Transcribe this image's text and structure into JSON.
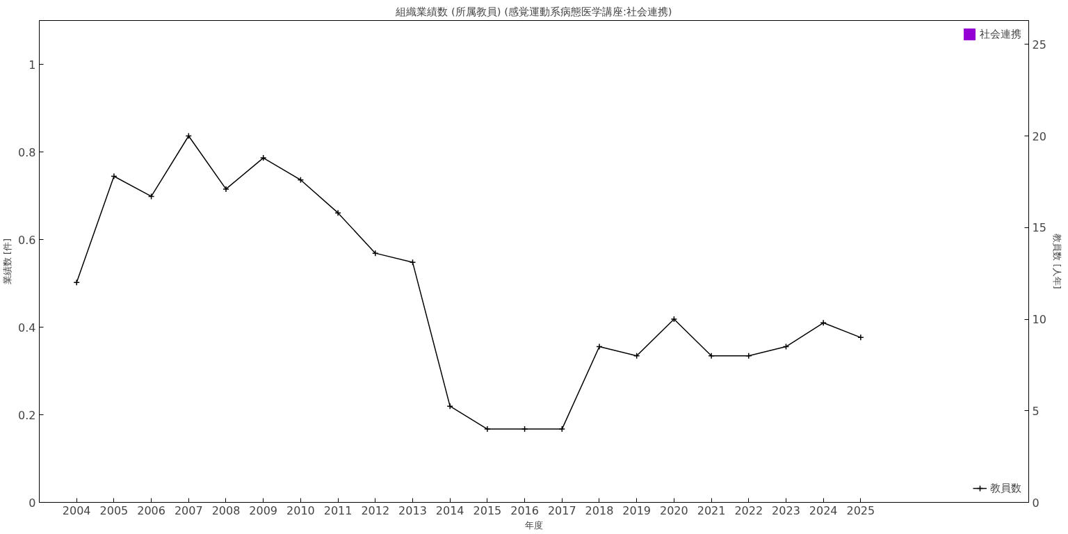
{
  "chart_data": {
    "type": "bar",
    "title": "組織業績数 (所属教員) (感覚運動系病態医学講座:社会連携)",
    "xlabel": "年度",
    "ylabel": "業績数 [件]",
    "y2label": "教員数 [人年]",
    "x": [
      2004,
      2005,
      2006,
      2007,
      2008,
      2009,
      2010,
      2011,
      2012,
      2013,
      2014,
      2015,
      2016,
      2017,
      2018,
      2019,
      2020,
      2021,
      2022,
      2023,
      2024,
      2025
    ],
    "xlim": [
      2003,
      2029.5
    ],
    "xticks": [
      2004,
      2005,
      2006,
      2007,
      2008,
      2009,
      2010,
      2011,
      2012,
      2013,
      2014,
      2015,
      2016,
      2017,
      2018,
      2019,
      2020,
      2021,
      2022,
      2023,
      2024,
      2025
    ],
    "ylim": [
      0,
      1.1
    ],
    "yticks": [
      0,
      0.2,
      0.4,
      0.6,
      0.8,
      1
    ],
    "y2lim": [
      0,
      26.3
    ],
    "y2ticks": [
      0,
      5,
      10,
      15,
      20,
      25
    ],
    "series": [
      {
        "name": "社会連携",
        "color": "#9400d3",
        "values": [
          0,
          0,
          0,
          0,
          0,
          0,
          0,
          0,
          0,
          0,
          0,
          0,
          0,
          0,
          0,
          0,
          0,
          0,
          0,
          0,
          0,
          0
        ]
      },
      {
        "name": "教員数",
        "type": "line",
        "axis": "y2",
        "color": "#000000",
        "marker": "cross",
        "values": [
          12,
          17.8,
          16.7,
          20,
          17.1,
          18.8,
          17.6,
          15.8,
          13.6,
          13.1,
          5.25,
          4,
          4,
          4,
          8.5,
          8,
          10,
          8,
          8,
          8.5,
          9.8,
          9
        ]
      }
    ],
    "grid": false,
    "legend": "right"
  }
}
